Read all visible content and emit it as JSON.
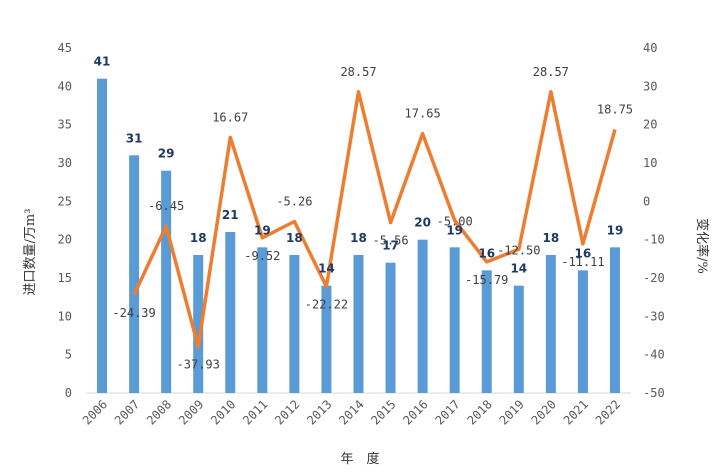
{
  "chart_data": {
    "type": "bar",
    "categories": [
      "2006",
      "2007",
      "2008",
      "2009",
      "2010",
      "2011",
      "2012",
      "2013",
      "2014",
      "2015",
      "2016",
      "2017",
      "2018",
      "2019",
      "2020",
      "2021",
      "2022"
    ],
    "series": [
      {
        "type": "bar",
        "axis": "left",
        "color": "#5b9bd5",
        "values": [
          41,
          31,
          29,
          18,
          21,
          19,
          18,
          14,
          18,
          17,
          20,
          19,
          16,
          14,
          18,
          16,
          19
        ]
      },
      {
        "type": "line",
        "axis": "right",
        "color": "#ed7d31",
        "values": [
          null,
          -24.39,
          -6.45,
          -37.93,
          16.67,
          -9.52,
          -5.26,
          -22.22,
          28.57,
          -5.56,
          17.65,
          -5.0,
          -15.79,
          -12.5,
          28.57,
          -11.11,
          18.75
        ],
        "value_labels": [
          "",
          "-24.39",
          "-6.45",
          "-37.93",
          "16.67",
          "-9.52",
          "-5.26",
          "-22.22",
          "28.57",
          "-5.56",
          "17.65",
          "-5.00",
          "-15.79",
          "-12.50",
          "28.57",
          "-11.11",
          "18.75"
        ]
      }
    ],
    "xlabel": "年　度",
    "ylabel": "进口数量/万m³",
    "y2label": "变化率/%",
    "ylim": [
      0,
      45
    ],
    "yticks": [
      0,
      5,
      10,
      15,
      20,
      25,
      30,
      35,
      40,
      45
    ],
    "y2lim": [
      -50,
      40
    ],
    "y2ticks": [
      -50,
      -40,
      -30,
      -20,
      -10,
      0,
      10,
      20,
      30,
      40
    ],
    "grid": false,
    "legend": "none"
  }
}
